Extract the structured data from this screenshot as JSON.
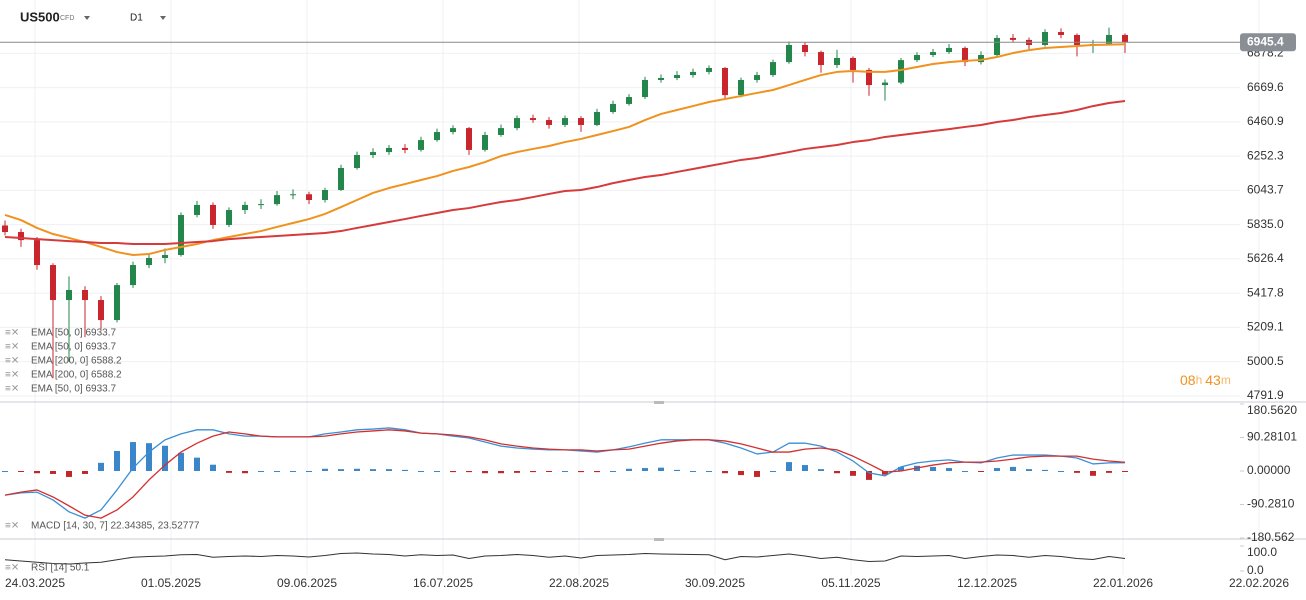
{
  "header": {
    "symbol": "US500",
    "instrument": "CFD",
    "timeframe": "D1"
  },
  "countdown": {
    "hours": "08",
    "h": "h",
    "minutes": "43",
    "m": "m"
  },
  "time_axis": [
    "24.03.2025",
    "01.05.2025",
    "09.06.2025",
    "16.07.2025",
    "22.08.2025",
    "30.09.2025",
    "05.11.2025",
    "12.12.2025",
    "22.01.2026",
    "22.02.2026"
  ],
  "chart_data": [
    {
      "type": "candlestick",
      "up_color": "#23864a",
      "down_color": "#c8252c",
      "last_price": 6945.4,
      "ylim": [
        4755,
        7203
      ],
      "yticks": [
        6878.2,
        6669.6,
        6460.9,
        6252.3,
        6043.7,
        {
          "value": 5835,
          "label": "5835.0"
        },
        5626.4,
        5417.8,
        5209.1,
        5000.5,
        4791.9
      ],
      "grid": true,
      "open": [
        5830,
        5790,
        5741,
        5589,
        5376,
        5437,
        5376,
        5254,
        5467,
        5589,
        5632,
        5650,
        5894,
        5955,
        5833,
        5924,
        5955,
        5960,
        6015,
        6020,
        5985,
        6046,
        6180,
        6259,
        6277,
        6302,
        6290,
        6350,
        6399,
        6423,
        6290,
        6381,
        6423,
        6484,
        6472,
        6442,
        6484,
        6442,
        6521,
        6570,
        6612,
        6716,
        6728,
        6746,
        6765,
        6789,
        6624,
        6716,
        6746,
        6825,
        6929,
        6886,
        6807,
        6850,
        6777,
        6685,
        6700,
        6837,
        6868,
        6886,
        6911,
        6825,
        6868,
        6972,
        6960,
        6929,
        7008,
        6990,
        6929,
        6935,
        6990
      ],
      "high": [
        5860,
        5810,
        5760,
        5600,
        5520,
        5460,
        5400,
        5480,
        5610,
        5660,
        5690,
        5910,
        5980,
        5970,
        5940,
        5975,
        5990,
        6040,
        6050,
        6035,
        6060,
        6200,
        6280,
        6300,
        6320,
        6325,
        6370,
        6420,
        6440,
        6430,
        6400,
        6445,
        6500,
        6505,
        6490,
        6500,
        6495,
        6540,
        6590,
        6630,
        6735,
        6750,
        6770,
        6785,
        6805,
        6795,
        6730,
        6765,
        6840,
        6950,
        6945,
        6895,
        6900,
        6860,
        6790,
        6720,
        6850,
        6885,
        6905,
        6935,
        6920,
        6890,
        6990,
        6995,
        6975,
        7025,
        7030,
        7000,
        6960,
        7035,
        7000
      ],
      "low": [
        5770,
        5700,
        5560,
        4900,
        5000,
        5150,
        5200,
        5240,
        5450,
        5570,
        5600,
        5640,
        5880,
        5810,
        5820,
        5900,
        5930,
        5950,
        5990,
        5960,
        5970,
        6040,
        6170,
        6240,
        6260,
        6270,
        6280,
        6340,
        6385,
        6260,
        6280,
        6370,
        6410,
        6455,
        6420,
        6430,
        6400,
        6435,
        6510,
        6560,
        6600,
        6700,
        6715,
        6730,
        6750,
        6600,
        6610,
        6700,
        6735,
        6815,
        6860,
        6760,
        6790,
        6700,
        6620,
        6590,
        6690,
        6825,
        6855,
        6875,
        6800,
        6810,
        6860,
        6945,
        6900,
        6920,
        6970,
        6860,
        6880,
        6925,
        6880
      ],
      "close": [
        5790,
        5741,
        5589,
        5376,
        5437,
        5376,
        5254,
        5467,
        5589,
        5632,
        5650,
        5894,
        5955,
        5833,
        5924,
        5955,
        5960,
        6015,
        6020,
        5985,
        6046,
        6180,
        6259,
        6277,
        6302,
        6290,
        6350,
        6399,
        6423,
        6290,
        6381,
        6423,
        6484,
        6472,
        6442,
        6484,
        6442,
        6521,
        6570,
        6612,
        6716,
        6728,
        6746,
        6765,
        6789,
        6624,
        6716,
        6746,
        6825,
        6929,
        6886,
        6807,
        6850,
        6777,
        6685,
        6700,
        6837,
        6868,
        6886,
        6911,
        6825,
        6868,
        6972,
        6960,
        6929,
        7008,
        6990,
        6929,
        6935,
        6990,
        6945.4
      ],
      "series": [
        {
          "color": "#f0921e",
          "values": [
            5894,
            5863,
            5815,
            5778,
            5754,
            5729,
            5699,
            5668,
            5650,
            5656,
            5681,
            5699,
            5717,
            5741,
            5760,
            5778,
            5796,
            5821,
            5845,
            5869,
            5900,
            5942,
            5985,
            6028,
            6058,
            6082,
            6107,
            6131,
            6162,
            6186,
            6216,
            6253,
            6277,
            6296,
            6314,
            6338,
            6357,
            6381,
            6405,
            6430,
            6472,
            6509,
            6533,
            6557,
            6582,
            6600,
            6618,
            6637,
            6655,
            6685,
            6716,
            6746,
            6765,
            6771,
            6765,
            6765,
            6777,
            6795,
            6813,
            6825,
            6832,
            6838,
            6856,
            6880,
            6898,
            6911,
            6917,
            6923,
            6929,
            6931,
            6933.7
          ]
        },
        {
          "color": "#d63a3a",
          "values": [
            5760,
            5754,
            5747,
            5741,
            5735,
            5729,
            5723,
            5723,
            5717,
            5717,
            5717,
            5723,
            5729,
            5735,
            5747,
            5754,
            5760,
            5766,
            5772,
            5778,
            5784,
            5796,
            5815,
            5833,
            5851,
            5869,
            5888,
            5906,
            5924,
            5936,
            5955,
            5973,
            5985,
            6003,
            6022,
            6040,
            6046,
            6064,
            6088,
            6107,
            6125,
            6137,
            6156,
            6174,
            6192,
            6210,
            6229,
            6241,
            6259,
            6277,
            6296,
            6308,
            6320,
            6338,
            6350,
            6369,
            6381,
            6393,
            6405,
            6417,
            6430,
            6442,
            6460,
            6472,
            6490,
            6503,
            6515,
            6533,
            6557,
            6576,
            6588.2
          ]
        }
      ],
      "legend": [
        "EMA [50,  0]  6933.7",
        "EMA [50,  0]  6933.7",
        "EMA [200,  0]  6588.2",
        "EMA [200,  0]  6588.2",
        "EMA [50,  0]  6933.7"
      ]
    },
    {
      "type": "macd",
      "ylim": [
        -180.562,
        180.562
      ],
      "yticks": [
        {
          "value": 180.562,
          "label": "180.5620"
        },
        90.28101,
        {
          "value": 0,
          "label": "0.00000"
        },
        {
          "value": -90.281,
          "label": "-90.2810"
        },
        -180.562
      ],
      "positive_color": "#3a86c8",
      "negative_color": "#c0282d",
      "histogram": [
        0,
        -2,
        -6,
        -8,
        -16,
        -8,
        22,
        54,
        78,
        75,
        68,
        49,
        36,
        17,
        -5,
        -6,
        0,
        0,
        0,
        0,
        6,
        5,
        6,
        5,
        5,
        3,
        0,
        0,
        -3,
        -3,
        -6,
        -6,
        -5,
        -3,
        -2,
        0,
        -3,
        -3,
        0,
        6,
        8,
        9,
        3,
        0,
        0,
        -6,
        -11,
        -16,
        0,
        24,
        16,
        5,
        -6,
        -13,
        -24,
        -10,
        11,
        14,
        11,
        8,
        0,
        -2,
        8,
        11,
        5,
        3,
        0,
        -5,
        -13,
        -5,
        -1.2
      ],
      "series": [
        {
          "color": "#3a8fd6",
          "values": [
            -65,
            -59,
            -57,
            -78,
            -110,
            -127,
            -105,
            -51,
            8,
            51,
            84,
            100,
            111,
            111,
            100,
            94,
            94,
            92,
            92,
            92,
            100,
            105,
            111,
            113,
            116,
            111,
            102,
            100,
            94,
            89,
            78,
            67,
            62,
            59,
            57,
            57,
            54,
            51,
            57,
            65,
            75,
            84,
            84,
            84,
            84,
            75,
            62,
            46,
            51,
            75,
            75,
            67,
            51,
            27,
            -5,
            -13,
            11,
            22,
            27,
            30,
            24,
            22,
            35,
            43,
            43,
            43,
            40,
            35,
            19,
            22,
            22.34385
          ]
        },
        {
          "color": "#d32f2f",
          "values": [
            -65,
            -57,
            -51,
            -70,
            -94,
            -119,
            -127,
            -105,
            -70,
            -24,
            16,
            51,
            75,
            94,
            105,
            100,
            94,
            92,
            92,
            92,
            94,
            100,
            105,
            108,
            111,
            108,
            102,
            100,
            97,
            92,
            84,
            73,
            67,
            62,
            59,
            57,
            57,
            54,
            57,
            59,
            67,
            75,
            81,
            84,
            84,
            81,
            73,
            62,
            51,
            51,
            59,
            62,
            57,
            40,
            19,
            -3,
            0,
            8,
            16,
            22,
            24,
            24,
            27,
            32,
            38,
            40,
            40,
            40,
            32,
            27,
            23.52777
          ]
        }
      ],
      "legend": "MACD [14,  30,  7]  22.34385,  23.52777"
    },
    {
      "type": "line",
      "ylim": [
        0,
        100
      ],
      "yticks": [
        {
          "value": 100,
          "label": "100.0"
        },
        {
          "value": 0,
          "label": "0.0"
        }
      ],
      "color": "#333333",
      "values": [
        45,
        40,
        35,
        30,
        28,
        32,
        35,
        45,
        55,
        58,
        60,
        65,
        66,
        55,
        58,
        60,
        58,
        62,
        60,
        56,
        62,
        70,
        72,
        68,
        66,
        60,
        65,
        62,
        64,
        50,
        60,
        62,
        66,
        62,
        55,
        60,
        52,
        62,
        64,
        66,
        70,
        68,
        67,
        66,
        65,
        45,
        58,
        56,
        62,
        68,
        60,
        50,
        55,
        45,
        38,
        40,
        60,
        58,
        60,
        62,
        50,
        58,
        64,
        62,
        55,
        62,
        58,
        50,
        46,
        58,
        50.1
      ],
      "legend": "RSI [14]  50.1"
    }
  ]
}
